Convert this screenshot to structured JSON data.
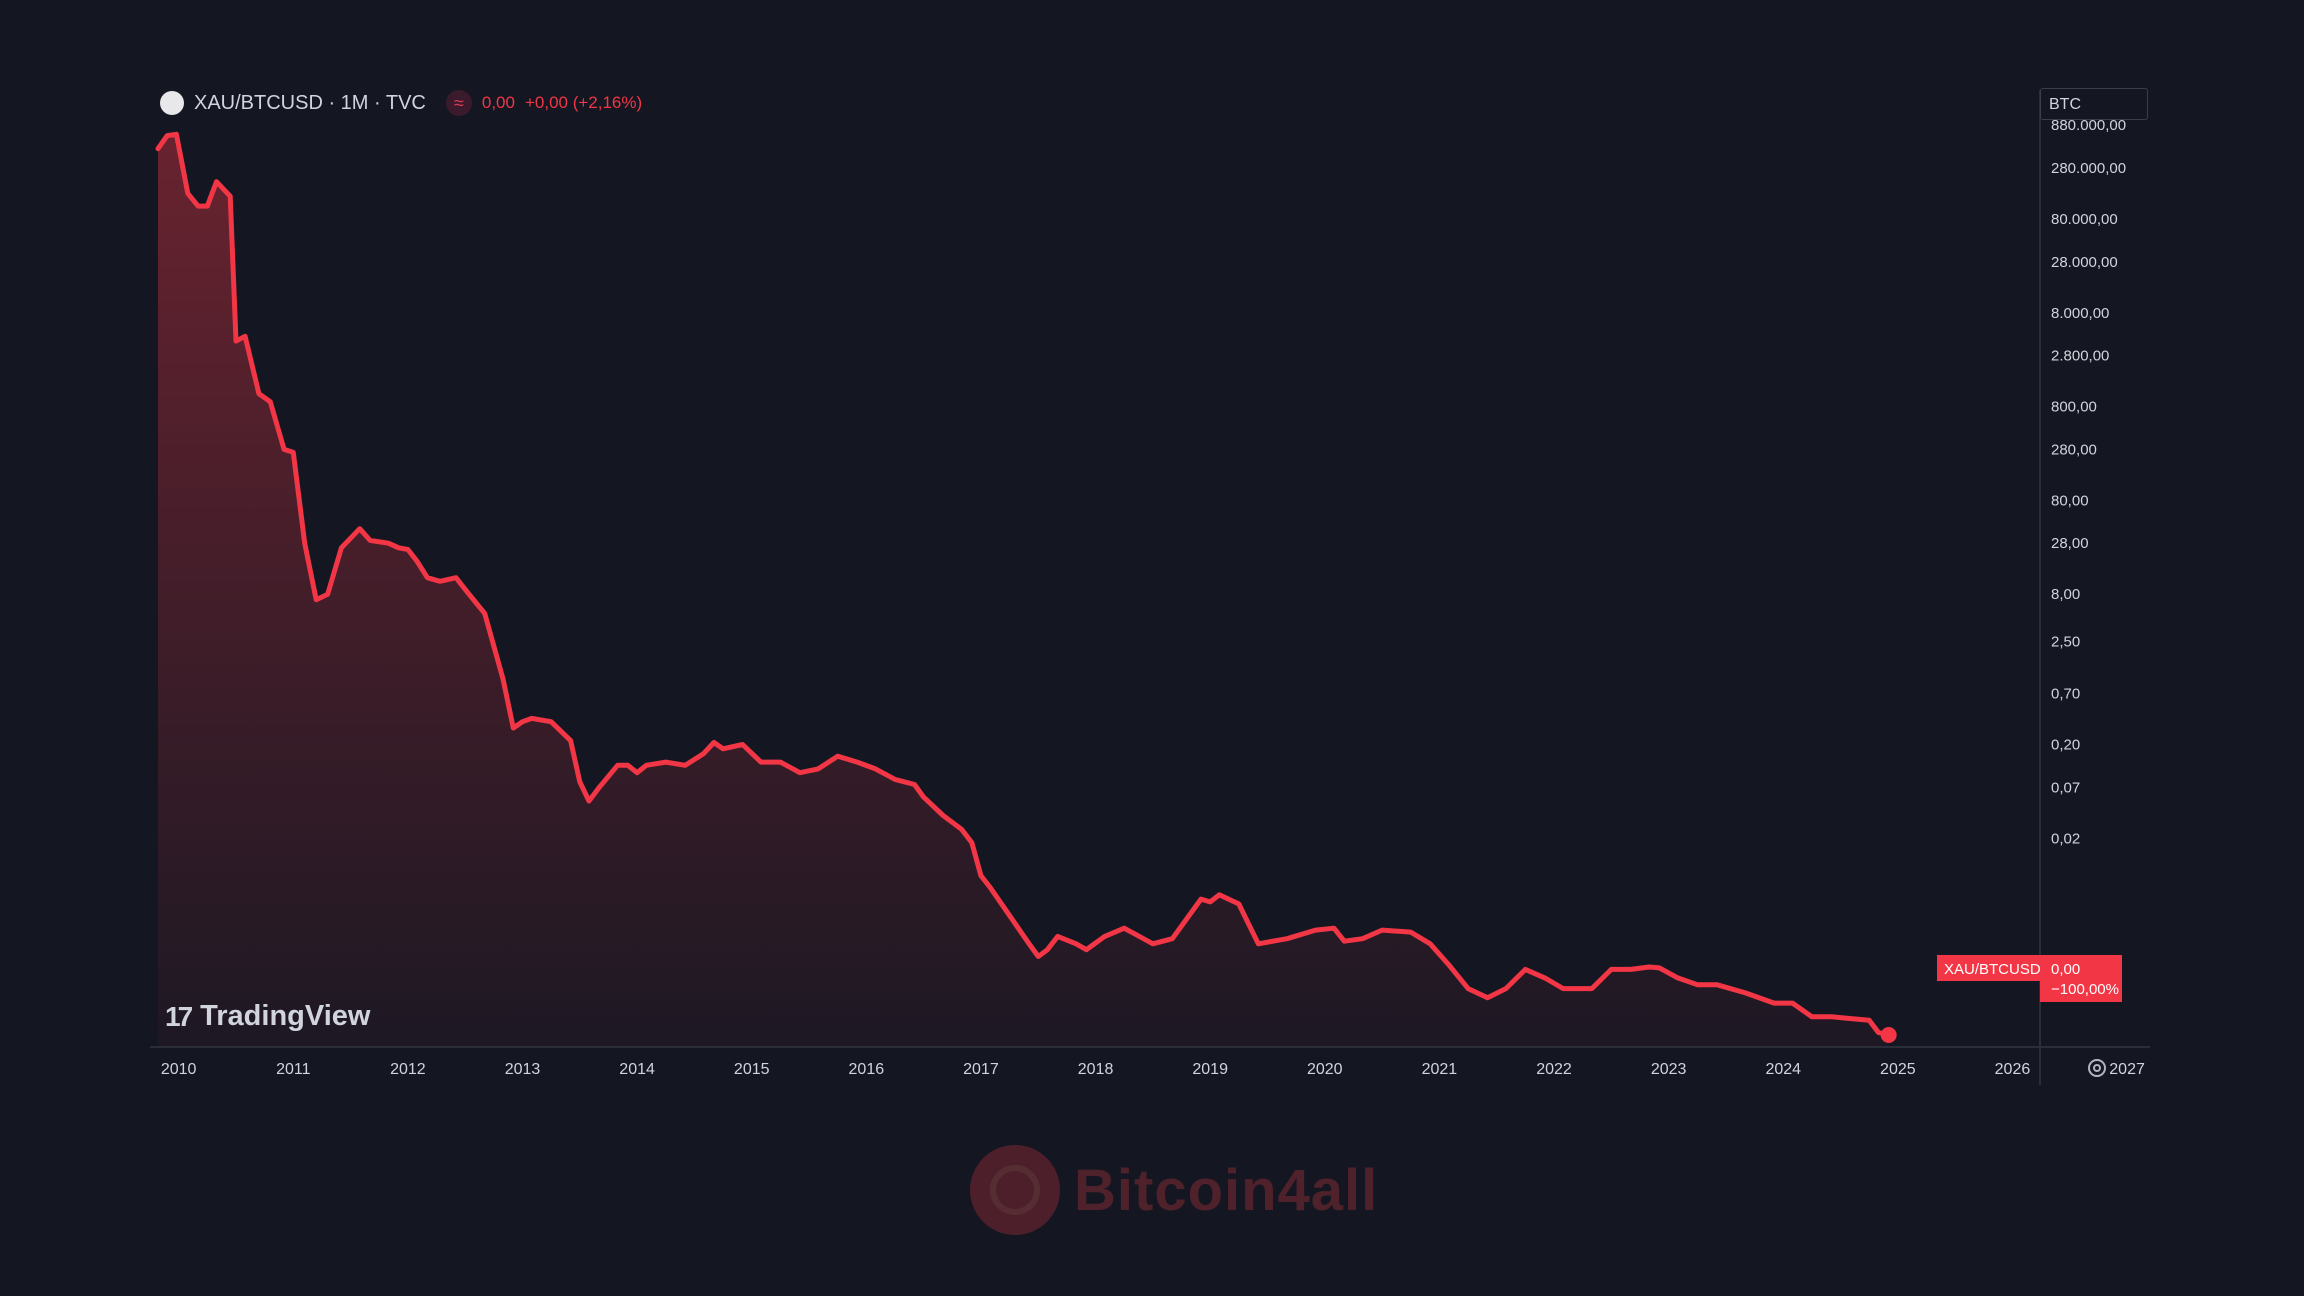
{
  "header": {
    "symbol": "XAU/BTCUSD · 1M · TVC",
    "last_value": "0,00",
    "change": "+0,00 (+2,16%)"
  },
  "price_axis": {
    "unit": "BTC",
    "tick_labels": [
      "280.000,00",
      "80.000,00",
      "28.000,00",
      "8.000,00",
      "2.800,00",
      "800,00",
      "280,00",
      "80,00",
      "28,00",
      "8,00",
      "2,50",
      "0,70",
      "0,20",
      "0,07",
      "0,02"
    ],
    "clipped_top_label": "880.000,00"
  },
  "series_label": {
    "name": "XAU/BTCUSD",
    "value": "0,00",
    "change_pct": "−100,00%"
  },
  "brand": {
    "name": "TradingView"
  },
  "watermark": {
    "text": "Bitcoin4all"
  },
  "colors": {
    "background": "#141722",
    "line": "#f23645",
    "label_bg": "#f23645",
    "axis_text": "#d1d4dc"
  },
  "icons": {
    "symbol": "gold-coin-icon",
    "indicator": "wave-icon",
    "settings": "gear-icon",
    "brand": "tradingview-logo-icon"
  },
  "chart_data": {
    "type": "area",
    "title": "",
    "xlabel": "",
    "ylabel": "BTC",
    "y_scale": "log",
    "x_range": [
      2009.75,
      2027.2
    ],
    "x_tick_labels": [
      "2010",
      "2011",
      "2012",
      "2013",
      "2014",
      "2015",
      "2016",
      "2017",
      "2018",
      "2019",
      "2020",
      "2021",
      "2022",
      "2023",
      "2024",
      "2025",
      "2026",
      "2027"
    ],
    "grid": false,
    "legend": "top-left",
    "series": [
      {
        "name": "XAU/BTCUSD",
        "points": [
          [
            2009.82,
            450000
          ],
          [
            2009.9,
            620000
          ],
          [
            2009.98,
            640000
          ],
          [
            2010.08,
            150000
          ],
          [
            2010.17,
            110000
          ],
          [
            2010.25,
            110000
          ],
          [
            2010.33,
            200000
          ],
          [
            2010.45,
            140000
          ],
          [
            2010.5,
            4000
          ],
          [
            2010.58,
            4500
          ],
          [
            2010.7,
            1100
          ],
          [
            2010.8,
            900
          ],
          [
            2010.92,
            280
          ],
          [
            2011.0,
            260
          ],
          [
            2011.1,
            28
          ],
          [
            2011.2,
            7
          ],
          [
            2011.3,
            8
          ],
          [
            2011.42,
            25
          ],
          [
            2011.58,
            40
          ],
          [
            2011.67,
            30
          ],
          [
            2011.83,
            28
          ],
          [
            2011.92,
            25
          ],
          [
            2012.0,
            24
          ],
          [
            2012.08,
            18
          ],
          [
            2012.17,
            12
          ],
          [
            2012.28,
            11
          ],
          [
            2012.42,
            12
          ],
          [
            2012.5,
            9
          ],
          [
            2012.67,
            5
          ],
          [
            2012.83,
            1.0
          ],
          [
            2012.92,
            0.3
          ],
          [
            2013.0,
            0.35
          ],
          [
            2013.08,
            0.38
          ],
          [
            2013.25,
            0.35
          ],
          [
            2013.42,
            0.22
          ],
          [
            2013.5,
            0.08
          ],
          [
            2013.58,
            0.05
          ],
          [
            2013.67,
            0.07
          ],
          [
            2013.83,
            0.12
          ],
          [
            2013.92,
            0.12
          ],
          [
            2014.0,
            0.1
          ],
          [
            2014.08,
            0.12
          ],
          [
            2014.25,
            0.13
          ],
          [
            2014.42,
            0.12
          ],
          [
            2014.58,
            0.16
          ],
          [
            2014.67,
            0.21
          ],
          [
            2014.75,
            0.18
          ],
          [
            2014.92,
            0.2
          ],
          [
            2015.08,
            0.13
          ],
          [
            2015.25,
            0.13
          ],
          [
            2015.42,
            0.1
          ],
          [
            2015.58,
            0.11
          ],
          [
            2015.75,
            0.15
          ],
          [
            2015.92,
            0.13
          ],
          [
            2016.08,
            0.11
          ],
          [
            2016.25,
            0.085
          ],
          [
            2016.42,
            0.075
          ],
          [
            2016.5,
            0.055
          ],
          [
            2016.67,
            0.035
          ],
          [
            2016.83,
            0.025
          ],
          [
            2016.92,
            0.018
          ],
          [
            2017.0,
            0.008
          ],
          [
            2017.08,
            0.006
          ],
          [
            2017.25,
            0.003
          ],
          [
            2017.42,
            0.0015
          ],
          [
            2017.5,
            0.0011
          ],
          [
            2017.58,
            0.0013
          ],
          [
            2017.67,
            0.0018
          ],
          [
            2017.83,
            0.0015
          ],
          [
            2017.92,
            0.0013
          ],
          [
            2018.08,
            0.0018
          ],
          [
            2018.25,
            0.0022
          ],
          [
            2018.5,
            0.0015
          ],
          [
            2018.67,
            0.0017
          ],
          [
            2018.92,
            0.0045
          ],
          [
            2019.0,
            0.0042
          ],
          [
            2019.08,
            0.005
          ],
          [
            2019.25,
            0.004
          ],
          [
            2019.42,
            0.0015
          ],
          [
            2019.67,
            0.0017
          ],
          [
            2019.92,
            0.0021
          ],
          [
            2020.08,
            0.0022
          ],
          [
            2020.17,
            0.0016
          ],
          [
            2020.33,
            0.0017
          ],
          [
            2020.5,
            0.0021
          ],
          [
            2020.75,
            0.002
          ],
          [
            2020.92,
            0.0015
          ],
          [
            2021.08,
            0.0009
          ],
          [
            2021.25,
            0.0005
          ],
          [
            2021.42,
            0.0004
          ],
          [
            2021.58,
            0.0005
          ],
          [
            2021.75,
            0.0008
          ],
          [
            2021.92,
            0.00065
          ],
          [
            2022.08,
            0.0005
          ],
          [
            2022.33,
            0.0005
          ],
          [
            2022.5,
            0.0008
          ],
          [
            2022.67,
            0.0008
          ],
          [
            2022.83,
            0.00085
          ],
          [
            2022.92,
            0.00083
          ],
          [
            2023.08,
            0.00065
          ],
          [
            2023.25,
            0.00055
          ],
          [
            2023.42,
            0.00055
          ],
          [
            2023.67,
            0.00045
          ],
          [
            2023.92,
            0.00035
          ],
          [
            2024.08,
            0.00035
          ],
          [
            2024.25,
            0.00025
          ],
          [
            2024.42,
            0.00025
          ],
          [
            2024.58,
            0.00024
          ],
          [
            2024.75,
            0.00023
          ],
          [
            2024.83,
            0.00017
          ],
          [
            2024.92,
            0.00016
          ]
        ]
      }
    ]
  }
}
